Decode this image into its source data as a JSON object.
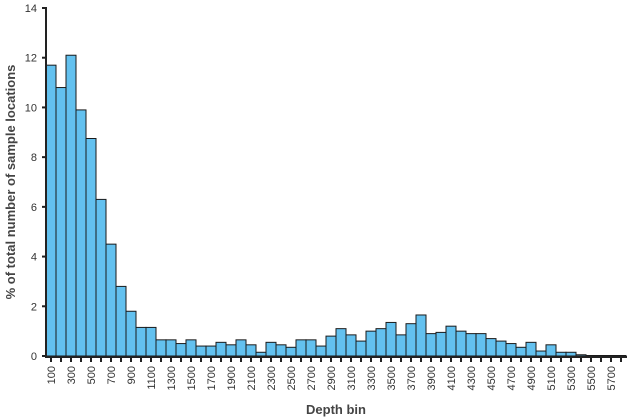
{
  "chart_data": {
    "type": "bar",
    "title": "",
    "xlabel": "Depth bin",
    "ylabel": "% of total number of sample locations",
    "ylim": [
      0,
      14
    ],
    "yticks": [
      0,
      2,
      4,
      6,
      8,
      10,
      12,
      14
    ],
    "categories": [
      100,
      200,
      300,
      400,
      500,
      600,
      700,
      800,
      900,
      1000,
      1100,
      1200,
      1300,
      1400,
      1500,
      1600,
      1700,
      1800,
      1900,
      2000,
      2100,
      2200,
      2300,
      2400,
      2500,
      2600,
      2700,
      2800,
      2900,
      3000,
      3100,
      3200,
      3300,
      3400,
      3500,
      3600,
      3700,
      3800,
      3900,
      4000,
      4100,
      4200,
      4300,
      4400,
      4500,
      4600,
      4700,
      4800,
      4900,
      5000,
      5100,
      5200,
      5300,
      5400,
      5500,
      5600,
      5700,
      5800
    ],
    "xtick_labels": [
      "100",
      "300",
      "500",
      "700",
      "900",
      "1100",
      "1300",
      "1500",
      "1700",
      "1900",
      "2100",
      "2300",
      "2500",
      "2700",
      "2900",
      "3100",
      "3300",
      "3500",
      "3700",
      "3900",
      "4100",
      "4300",
      "4500",
      "4700",
      "4900",
      "5100",
      "5300",
      "5500",
      "5700"
    ],
    "values": [
      11.7,
      10.8,
      12.1,
      9.9,
      8.75,
      6.3,
      4.5,
      2.8,
      1.8,
      1.15,
      1.15,
      0.65,
      0.65,
      0.5,
      0.65,
      0.4,
      0.4,
      0.55,
      0.45,
      0.65,
      0.45,
      0.15,
      0.55,
      0.45,
      0.35,
      0.65,
      0.65,
      0.4,
      0.8,
      1.1,
      0.85,
      0.6,
      1.0,
      1.1,
      1.35,
      0.85,
      1.3,
      1.65,
      0.9,
      0.95,
      1.2,
      1.0,
      0.9,
      0.9,
      0.7,
      0.6,
      0.5,
      0.35,
      0.55,
      0.2,
      0.45,
      0.15,
      0.15,
      0.05,
      0.02,
      0.02,
      0.02,
      0.02
    ],
    "bar_color": "#63c1ef",
    "edge_color": "#1a1a1a",
    "grid": false
  }
}
